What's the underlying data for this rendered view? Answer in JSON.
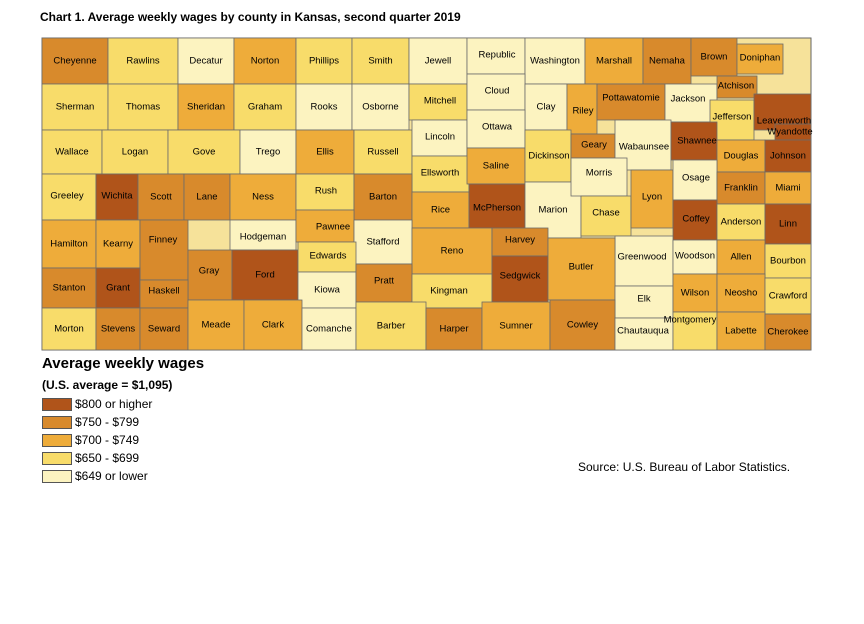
{
  "title": "Chart 1. Average weekly wages by county in Kansas, second quarter 2019",
  "legend": {
    "title": "Average weekly wages",
    "subtitle": "(U.S. average = $1,095)",
    "items": [
      {
        "label": "$800 or higher",
        "color": "#b0541a"
      },
      {
        "label": "$750 - $799",
        "color": "#d88a2c"
      },
      {
        "label": "$700 - $749",
        "color": "#eeac3a"
      },
      {
        "label": "$650 - $699",
        "color": "#f8dc6a"
      },
      {
        "label": "$649 or lower",
        "color": "#fcf3c0"
      }
    ]
  },
  "source": "Source: U.S. Bureau of Labor Statistics.",
  "counties": [
    {
      "name": "Cheyenne",
      "bin": 1
    },
    {
      "name": "Rawlins",
      "bin": 3
    },
    {
      "name": "Decatur",
      "bin": 4
    },
    {
      "name": "Norton",
      "bin": 2
    },
    {
      "name": "Phillips",
      "bin": 3
    },
    {
      "name": "Smith",
      "bin": 3
    },
    {
      "name": "Jewell",
      "bin": 4
    },
    {
      "name": "Republic",
      "bin": 4
    },
    {
      "name": "Washington",
      "bin": 4
    },
    {
      "name": "Marshall",
      "bin": 2
    },
    {
      "name": "Nemaha",
      "bin": 1
    },
    {
      "name": "Brown",
      "bin": 1
    },
    {
      "name": "Doniphan",
      "bin": 2
    },
    {
      "name": "Sherman",
      "bin": 3
    },
    {
      "name": "Thomas",
      "bin": 3
    },
    {
      "name": "Sheridan",
      "bin": 2
    },
    {
      "name": "Graham",
      "bin": 3
    },
    {
      "name": "Rooks",
      "bin": 4
    },
    {
      "name": "Osborne",
      "bin": 4
    },
    {
      "name": "Mitchell",
      "bin": 3
    },
    {
      "name": "Cloud",
      "bin": 4
    },
    {
      "name": "Clay",
      "bin": 4
    },
    {
      "name": "Riley",
      "bin": 2
    },
    {
      "name": "Pottawatomie",
      "bin": 1
    },
    {
      "name": "Jackson",
      "bin": 4
    },
    {
      "name": "Atchison",
      "bin": 1
    },
    {
      "name": "Jefferson",
      "bin": 3
    },
    {
      "name": "Leavenworth",
      "bin": 0
    },
    {
      "name": "Wyandotte",
      "bin": 0
    },
    {
      "name": "Wallace",
      "bin": 3
    },
    {
      "name": "Logan",
      "bin": 3
    },
    {
      "name": "Gove",
      "bin": 3
    },
    {
      "name": "Trego",
      "bin": 4
    },
    {
      "name": "Ellis",
      "bin": 2
    },
    {
      "name": "Russell",
      "bin": 3
    },
    {
      "name": "Lincoln",
      "bin": 4
    },
    {
      "name": "Ottawa",
      "bin": 4
    },
    {
      "name": "Ellsworth",
      "bin": 3
    },
    {
      "name": "Saline",
      "bin": 2
    },
    {
      "name": "Dickinson",
      "bin": 3
    },
    {
      "name": "Geary",
      "bin": 1
    },
    {
      "name": "Wabaunsee",
      "bin": 4
    },
    {
      "name": "Shawnee",
      "bin": 0
    },
    {
      "name": "Douglas",
      "bin": 2
    },
    {
      "name": "Johnson",
      "bin": 0
    },
    {
      "name": "Greeley",
      "bin": 3
    },
    {
      "name": "Wichita",
      "bin": 0
    },
    {
      "name": "Scott",
      "bin": 1
    },
    {
      "name": "Lane",
      "bin": 1
    },
    {
      "name": "Ness",
      "bin": 2
    },
    {
      "name": "Rush",
      "bin": 3
    },
    {
      "name": "Barton",
      "bin": 1
    },
    {
      "name": "Rice",
      "bin": 2
    },
    {
      "name": "McPherson",
      "bin": 0
    },
    {
      "name": "Marion",
      "bin": 4
    },
    {
      "name": "Morris",
      "bin": 4
    },
    {
      "name": "Chase",
      "bin": 3
    },
    {
      "name": "Lyon",
      "bin": 2
    },
    {
      "name": "Osage",
      "bin": 4
    },
    {
      "name": "Franklin",
      "bin": 1
    },
    {
      "name": "Miami",
      "bin": 2
    },
    {
      "name": "Hamilton",
      "bin": 2
    },
    {
      "name": "Kearny",
      "bin": 2
    },
    {
      "name": "Finney",
      "bin": 1
    },
    {
      "name": "Hodgeman",
      "bin": 4
    },
    {
      "name": "Pawnee",
      "bin": 2
    },
    {
      "name": "Stafford",
      "bin": 4
    },
    {
      "name": "Reno",
      "bin": 2
    },
    {
      "name": "Harvey",
      "bin": 1
    },
    {
      "name": "Coffey",
      "bin": 0
    },
    {
      "name": "Anderson",
      "bin": 3
    },
    {
      "name": "Linn",
      "bin": 0
    },
    {
      "name": "Gray",
      "bin": 1
    },
    {
      "name": "Ford",
      "bin": 0
    },
    {
      "name": "Edwards",
      "bin": 3
    },
    {
      "name": "Greenwood",
      "bin": 4
    },
    {
      "name": "Woodson",
      "bin": 4
    },
    {
      "name": "Allen",
      "bin": 2
    },
    {
      "name": "Bourbon",
      "bin": 3
    },
    {
      "name": "Stanton",
      "bin": 1
    },
    {
      "name": "Grant",
      "bin": 0
    },
    {
      "name": "Haskell",
      "bin": 1
    },
    {
      "name": "Kiowa",
      "bin": 4
    },
    {
      "name": "Pratt",
      "bin": 1
    },
    {
      "name": "Kingman",
      "bin": 3
    },
    {
      "name": "Sedgwick",
      "bin": 0
    },
    {
      "name": "Butler",
      "bin": 2
    },
    {
      "name": "Elk",
      "bin": 4
    },
    {
      "name": "Wilson",
      "bin": 2
    },
    {
      "name": "Neosho",
      "bin": 2
    },
    {
      "name": "Crawford",
      "bin": 3
    },
    {
      "name": "Morton",
      "bin": 3
    },
    {
      "name": "Stevens",
      "bin": 1
    },
    {
      "name": "Seward",
      "bin": 1
    },
    {
      "name": "Meade",
      "bin": 2
    },
    {
      "name": "Clark",
      "bin": 2
    },
    {
      "name": "Comanche",
      "bin": 4
    },
    {
      "name": "Barber",
      "bin": 3
    },
    {
      "name": "Harper",
      "bin": 1
    },
    {
      "name": "Sumner",
      "bin": 2
    },
    {
      "name": "Cowley",
      "bin": 1
    },
    {
      "name": "Chautauqua",
      "bin": 4
    },
    {
      "name": "Montgomery",
      "bin": 3
    },
    {
      "name": "Labette",
      "bin": 2
    },
    {
      "name": "Cherokee",
      "bin": 1
    }
  ]
}
